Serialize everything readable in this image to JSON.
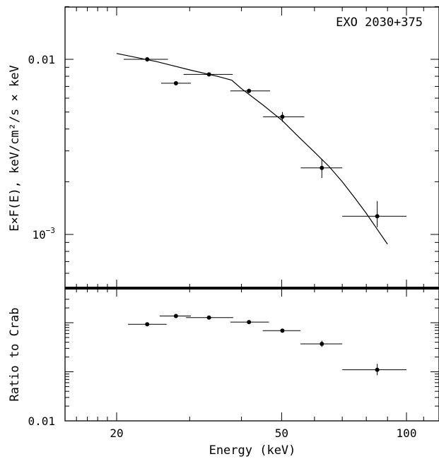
{
  "chart_data": [
    {
      "type": "scatter",
      "title": "",
      "annotation": "EXO 2030+375",
      "ylabel": "E×F(E), keV/cm²/s × keV",
      "xlabel": "",
      "xscale": "log",
      "yscale": "log",
      "xlim": [
        15,
        120
      ],
      "ylim": [
        0.0005,
        0.022
      ],
      "yticks": [
        {
          "value": 0.01,
          "label": "0.01"
        },
        {
          "value": 0.001,
          "label": "10^-3"
        }
      ],
      "series": [
        {
          "points": [
            {
              "x": 23.7,
              "y": 0.01,
              "xlo": 20.8,
              "xhi": 26.6,
              "ylo": 0.0097,
              "yhi": 0.0103
            },
            {
              "x": 27.8,
              "y": 0.0073,
              "xlo": 25.6,
              "xhi": 30.2,
              "ylo": 0.0071,
              "yhi": 0.0075
            },
            {
              "x": 33.4,
              "y": 0.0082,
              "xlo": 29.0,
              "xhi": 38.1,
              "ylo": 0.008,
              "yhi": 0.0084
            },
            {
              "x": 41.7,
              "y": 0.0066,
              "xlo": 37.6,
              "xhi": 46.9,
              "ylo": 0.0064,
              "yhi": 0.0068
            },
            {
              "x": 50.2,
              "y": 0.0047,
              "xlo": 45.1,
              "xhi": 56.7,
              "ylo": 0.0044,
              "yhi": 0.005
            },
            {
              "x": 62.5,
              "y": 0.0024,
              "xlo": 55.6,
              "xhi": 70.0,
              "ylo": 0.0021,
              "yhi": 0.0027
            },
            {
              "x": 85.0,
              "y": 0.00127,
              "xlo": 70.0,
              "xhi": 100.0,
              "ylo": 0.0011,
              "yhi": 0.00155
            }
          ]
        }
      ],
      "model_curve": {
        "x": [
          20.0,
          25.0,
          30.0,
          35.0,
          37.9,
          40.0,
          45.0,
          50.0,
          55.0,
          60.0,
          65.0,
          70.0,
          75.0,
          80.0,
          85.0,
          90.0
        ],
        "y": [
          0.0108,
          0.0097,
          0.0087,
          0.008,
          0.0076,
          0.0068,
          0.0055,
          0.0045,
          0.0036,
          0.00295,
          0.00245,
          0.002,
          0.00162,
          0.00132,
          0.00107,
          0.00088
        ]
      }
    },
    {
      "type": "scatter",
      "title": "",
      "ylabel": "Ratio to Crab",
      "xlabel": "Energy (keV)",
      "xscale": "log",
      "yscale": "log",
      "xlim": [
        15,
        120
      ],
      "ylim": [
        0.01,
        10
      ],
      "xticks": [
        {
          "value": 20,
          "label": "20"
        },
        {
          "value": 50,
          "label": "50"
        },
        {
          "value": 100,
          "label": "100"
        }
      ],
      "yticks": [
        {
          "value": 0.01,
          "label": "0.01"
        }
      ],
      "series": [
        {
          "points": [
            {
              "x": 23.7,
              "y": 0.93,
              "xlo": 21.3,
              "xhi": 26.4,
              "ylo": 0.9,
              "yhi": 0.96
            },
            {
              "x": 27.8,
              "y": 1.37,
              "xlo": 25.4,
              "xhi": 30.2,
              "ylo": 1.32,
              "yhi": 1.42
            },
            {
              "x": 33.4,
              "y": 1.27,
              "xlo": 29.4,
              "xhi": 38.2,
              "ylo": 1.23,
              "yhi": 1.31
            },
            {
              "x": 41.7,
              "y": 1.03,
              "xlo": 37.6,
              "xhi": 46.6,
              "ylo": 0.99,
              "yhi": 1.07
            },
            {
              "x": 50.2,
              "y": 0.69,
              "xlo": 45.0,
              "xhi": 55.5,
              "ylo": 0.64,
              "yhi": 0.75
            },
            {
              "x": 62.5,
              "y": 0.37,
              "xlo": 55.5,
              "xhi": 70.0,
              "ylo": 0.32,
              "yhi": 0.43
            },
            {
              "x": 85.0,
              "y": 0.11,
              "xlo": 70.0,
              "xhi": 100.0,
              "ylo": 0.085,
              "yhi": 0.145
            }
          ]
        }
      ]
    }
  ]
}
